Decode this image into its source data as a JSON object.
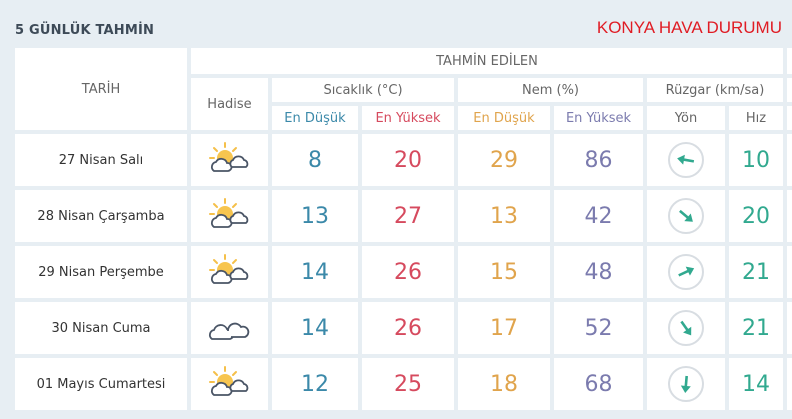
{
  "header": {
    "title": "5 GÜNLÜK TAHMİN",
    "city": "KONYA HAVA DURUMU"
  },
  "columns": {
    "date": "TARİH",
    "forecast": "TAHMİN EDİLEN",
    "event": "Hadise",
    "temp": "Sıcaklık (°C)",
    "humidity": "Nem (%)",
    "wind": "Rüzgar (km/sa)",
    "min": "En Düşük",
    "max": "En Yüksek",
    "dir": "Yön",
    "speed": "Hız"
  },
  "colors": {
    "min_temp": "#3b89a9",
    "max_temp": "#d64a5e",
    "min_hum": "#e0a44c",
    "max_hum": "#7b7bae",
    "wind": "#31a98f",
    "title": "#e01c24"
  },
  "rows": [
    {
      "date": "27 Nisan Salı",
      "icon": "partly-cloudy-icon",
      "tmin": "8",
      "tmax": "20",
      "hmin": "29",
      "hmax": "86",
      "wind_arrow_deg": 190,
      "speed": "10"
    },
    {
      "date": "28 Nisan Çarşamba",
      "icon": "partly-cloudy-icon",
      "tmin": "13",
      "tmax": "27",
      "hmin": "13",
      "hmax": "42",
      "wind_arrow_deg": 40,
      "speed": "20"
    },
    {
      "date": "29 Nisan Perşembe",
      "icon": "partly-cloudy-icon",
      "tmin": "14",
      "tmax": "26",
      "hmin": "15",
      "hmax": "48",
      "wind_arrow_deg": -25,
      "speed": "21"
    },
    {
      "date": "30 Nisan Cuma",
      "icon": "cloudy-icon",
      "tmin": "14",
      "tmax": "26",
      "hmin": "17",
      "hmax": "52",
      "wind_arrow_deg": 55,
      "speed": "21"
    },
    {
      "date": "01 Mayıs Cumartesi",
      "icon": "partly-cloudy-icon",
      "tmin": "12",
      "tmax": "25",
      "hmin": "18",
      "hmax": "68",
      "wind_arrow_deg": 95,
      "speed": "14"
    }
  ]
}
